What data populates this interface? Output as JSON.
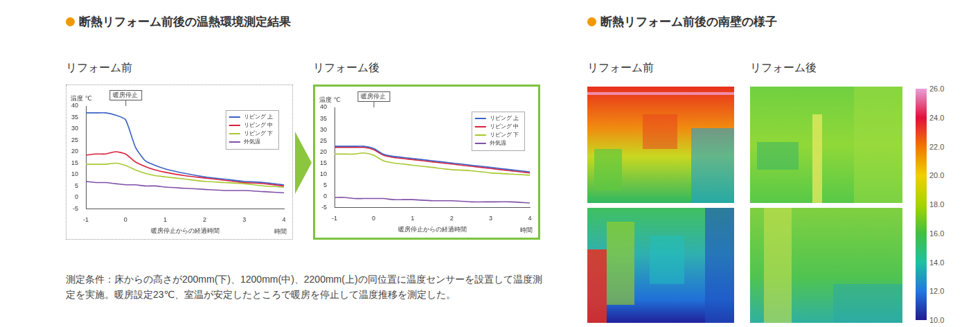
{
  "heading_left": "断熱リフォーム前後の温熱環境測定結果",
  "chart_data": [
    {
      "type": "line",
      "title": "リフォーム前",
      "annotation": {
        "text": "暖房停止",
        "x": 0
      },
      "x_label": "暖房停止からの経過時間",
      "x_unit": "時間",
      "y_label": "温度 ℃",
      "x": [
        -1,
        -0.75,
        -0.5,
        -0.25,
        0,
        0.25,
        0.5,
        0.75,
        1,
        1.5,
        2,
        2.5,
        3,
        3.5,
        4
      ],
      "series": [
        {
          "name": "リビング 上",
          "color": "#3a62c4",
          "values": [
            37,
            37,
            37,
            36,
            34,
            22,
            16,
            14,
            12.5,
            10.5,
            9,
            8,
            7,
            6.5,
            5.5
          ]
        },
        {
          "name": "リビング 中",
          "color": "#d8203c",
          "values": [
            18.5,
            19,
            19,
            20,
            19,
            15.5,
            13.5,
            12,
            11,
            9.5,
            8.5,
            7.5,
            6.5,
            6,
            5
          ]
        },
        {
          "name": "リビング 下",
          "color": "#a8c830",
          "values": [
            14.5,
            14.5,
            14.5,
            15,
            14,
            12,
            10.5,
            9.5,
            9,
            8,
            7,
            6.5,
            6,
            5,
            4.5
          ]
        },
        {
          "name": "外気温",
          "color": "#8050a8",
          "values": [
            7,
            6.5,
            6.5,
            6,
            5.5,
            5.5,
            5,
            5,
            4.5,
            4,
            3.5,
            3,
            3,
            2.5,
            2
          ]
        }
      ],
      "xlim": [
        -1,
        4
      ],
      "xticks": [
        -1,
        0,
        1,
        2,
        3,
        4
      ],
      "ylim": [
        -5,
        40
      ],
      "yticks": [
        -5,
        0,
        5,
        10,
        15,
        20,
        25,
        30,
        35,
        40
      ],
      "grid": false,
      "legend": "upper right"
    },
    {
      "type": "line",
      "title": "リフォーム後",
      "annotation": {
        "text": "暖房停止",
        "x": 0
      },
      "x_label": "暖房停止からの経過時間",
      "x_unit": "時間",
      "y_label": "温度 ℃",
      "x": [
        -1,
        -0.75,
        -0.5,
        -0.25,
        0,
        0.25,
        0.5,
        0.75,
        1,
        1.5,
        2,
        2.5,
        3,
        3.5,
        4
      ],
      "series": [
        {
          "name": "リビング 上",
          "color": "#3a62c4",
          "values": [
            22.5,
            22.5,
            22.5,
            22.5,
            21.5,
            19,
            18,
            17.5,
            17,
            16,
            15,
            14,
            13,
            12,
            11
          ]
        },
        {
          "name": "リビング 中",
          "color": "#d8203c",
          "values": [
            22,
            22,
            22,
            22,
            21,
            18.5,
            17.5,
            17,
            16.5,
            15.5,
            14.5,
            13.5,
            12.5,
            11.5,
            10.5
          ]
        },
        {
          "name": "リビング 下",
          "color": "#a8c830",
          "values": [
            19,
            19,
            19,
            19.5,
            18.5,
            16,
            15,
            14.5,
            14,
            13,
            12,
            11.5,
            10.5,
            10,
            9.5
          ]
        },
        {
          "name": "外気温",
          "color": "#8050a8",
          "values": [
            -0.5,
            -0.5,
            -1,
            -1,
            -1,
            -1,
            -1.5,
            -1.5,
            -1.5,
            -2,
            -2,
            -2.5,
            -2.5,
            -2.5,
            -3
          ]
        }
      ],
      "xlim": [
        -1,
        4
      ],
      "xticks": [
        -1,
        0,
        1,
        2,
        3,
        4
      ],
      "ylim": [
        -5,
        40
      ],
      "yticks": [
        -5,
        0,
        5,
        10,
        15,
        20,
        25,
        30,
        35,
        40
      ],
      "grid": false,
      "legend": "upper right"
    }
  ],
  "caption": "測定条件：床からの高さが200mm(下)、1200mm(中)、2200mm(上)の同位置に温度センサーを設置して温度測定を実施。暖房設定23℃、室温が安定したところで暖房を停止して温度推移を測定した。",
  "heading_right": "断熱リフォーム前後の南壁の様子",
  "thermal": {
    "titles": [
      "リフォーム前",
      "リフォーム後"
    ],
    "colorbar": {
      "range": [
        10,
        26
      ],
      "ticks": [
        {
          "value": 26,
          "label": "26.0"
        },
        {
          "value": 24,
          "label": "24.0"
        },
        {
          "value": 22,
          "label": "22.0"
        },
        {
          "value": 20,
          "label": "20.0"
        },
        {
          "value": 18,
          "label": "18.0"
        },
        {
          "value": 16,
          "label": "16.0"
        },
        {
          "value": 14,
          "label": "14.0"
        },
        {
          "value": 12,
          "label": "12.0"
        },
        {
          "value": 10,
          "label": "10.0"
        }
      ]
    }
  }
}
